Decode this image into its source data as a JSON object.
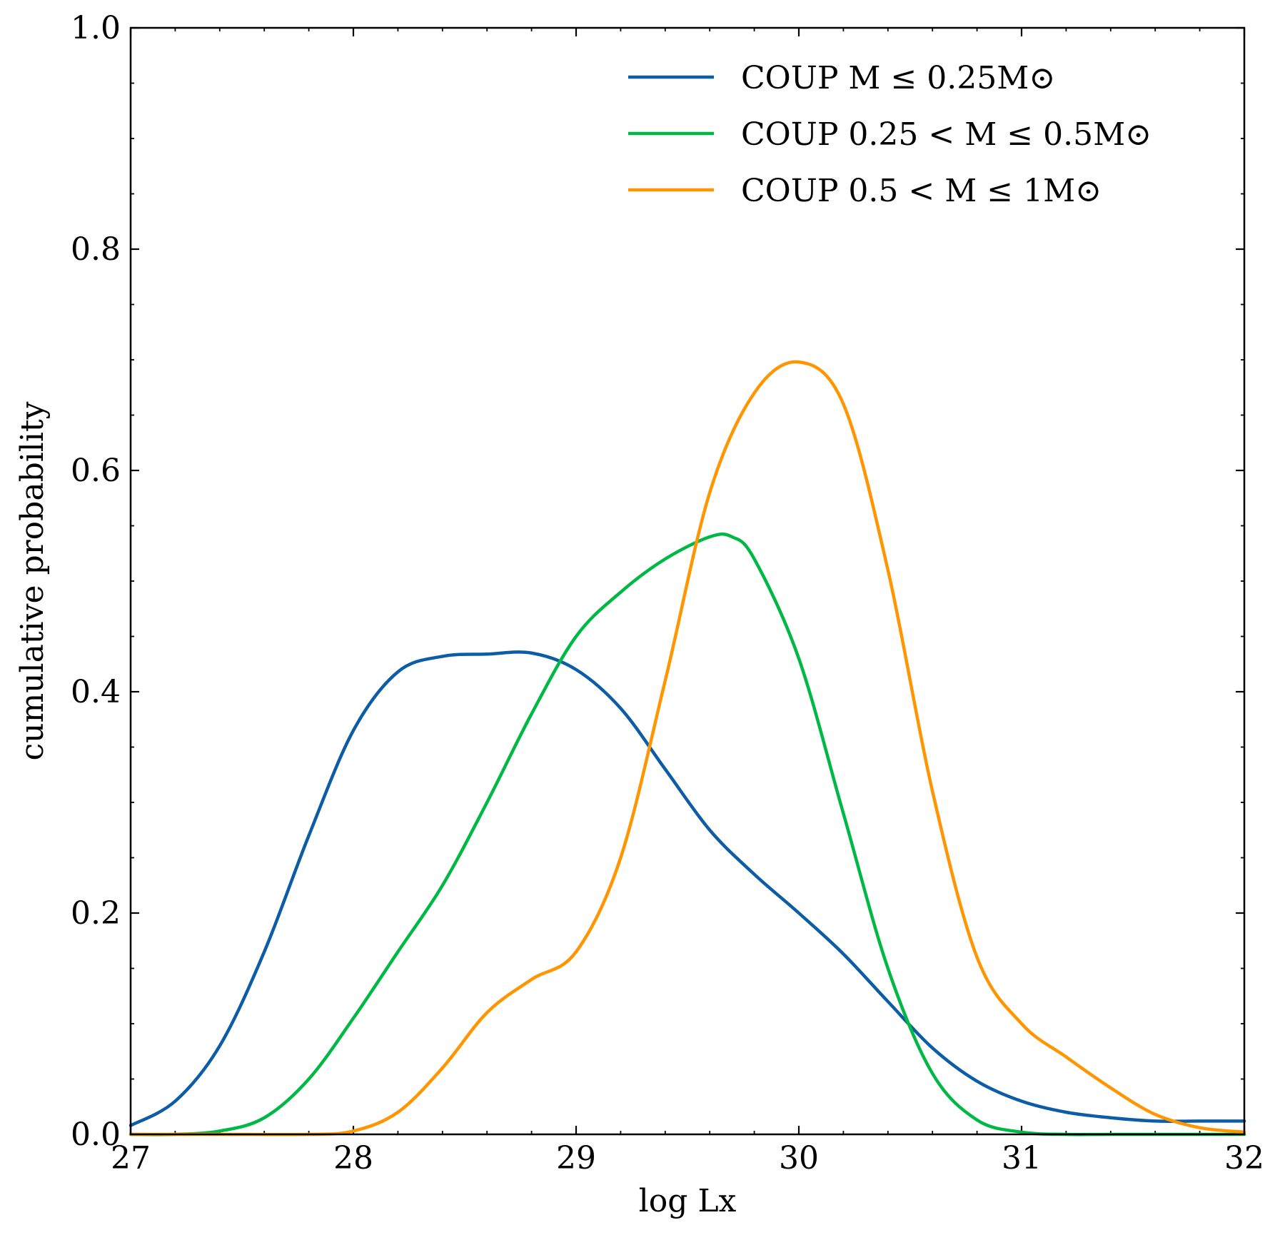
{
  "chart_data": {
    "type": "line",
    "title": "",
    "xlabel": "log Lx",
    "ylabel": "cumulative probability",
    "xlim": [
      27,
      32
    ],
    "ylim": [
      0.0,
      1.0
    ],
    "x_ticks": [
      27,
      28,
      29,
      30,
      31,
      32
    ],
    "x_tick_labels": [
      "27",
      "28",
      "29",
      "30",
      "31",
      "32"
    ],
    "y_ticks": [
      0.0,
      0.2,
      0.4,
      0.6,
      0.8,
      1.0
    ],
    "y_tick_labels": [
      "0.0",
      "0.2",
      "0.4",
      "0.6",
      "0.8",
      "1.0"
    ],
    "x_minor_step": 0.2,
    "y_minor_step": 0.05,
    "grid": false,
    "legend_position": "top-right",
    "series": [
      {
        "name": "COUP M ≤ 0.25M⊙",
        "color": "#0c5da5",
        "x": [
          27.0,
          27.2,
          27.4,
          27.6,
          27.8,
          28.0,
          28.2,
          28.4,
          28.6,
          28.8,
          29.0,
          29.2,
          29.4,
          29.6,
          29.8,
          30.0,
          30.2,
          30.4,
          30.6,
          30.8,
          31.0,
          31.2,
          31.4,
          31.6,
          31.8,
          32.0
        ],
        "y": [
          0.008,
          0.03,
          0.08,
          0.165,
          0.27,
          0.365,
          0.418,
          0.432,
          0.434,
          0.435,
          0.42,
          0.385,
          0.33,
          0.275,
          0.235,
          0.2,
          0.163,
          0.12,
          0.078,
          0.048,
          0.03,
          0.02,
          0.015,
          0.012,
          0.012,
          0.012
        ]
      },
      {
        "name": "COUP 0.25 < M ≤ 0.5M⊙",
        "color": "#00b945",
        "x": [
          27.0,
          27.2,
          27.4,
          27.6,
          27.8,
          28.0,
          28.2,
          28.4,
          28.6,
          28.8,
          29.0,
          29.2,
          29.4,
          29.6,
          29.7,
          29.8,
          30.0,
          30.2,
          30.4,
          30.6,
          30.8,
          31.0,
          31.2,
          31.4,
          31.6,
          31.8,
          32.0
        ],
        "y": [
          0.0,
          0.0,
          0.003,
          0.015,
          0.05,
          0.105,
          0.165,
          0.225,
          0.3,
          0.38,
          0.45,
          0.49,
          0.52,
          0.54,
          0.54,
          0.52,
          0.43,
          0.29,
          0.15,
          0.055,
          0.013,
          0.002,
          0.0,
          0.0,
          0.0,
          0.0,
          0.0
        ]
      },
      {
        "name": "COUP 0.5 < M ≤ 1M⊙",
        "color": "#ff9500",
        "x": [
          27.0,
          27.4,
          27.8,
          28.0,
          28.2,
          28.4,
          28.6,
          28.8,
          29.0,
          29.2,
          29.4,
          29.6,
          29.8,
          30.0,
          30.2,
          30.4,
          30.6,
          30.8,
          31.0,
          31.2,
          31.4,
          31.6,
          31.8,
          32.0
        ],
        "y": [
          0.0,
          0.0,
          0.0,
          0.003,
          0.02,
          0.06,
          0.11,
          0.14,
          0.165,
          0.25,
          0.41,
          0.58,
          0.67,
          0.698,
          0.66,
          0.51,
          0.31,
          0.16,
          0.1,
          0.07,
          0.042,
          0.018,
          0.006,
          0.002
        ]
      }
    ]
  }
}
